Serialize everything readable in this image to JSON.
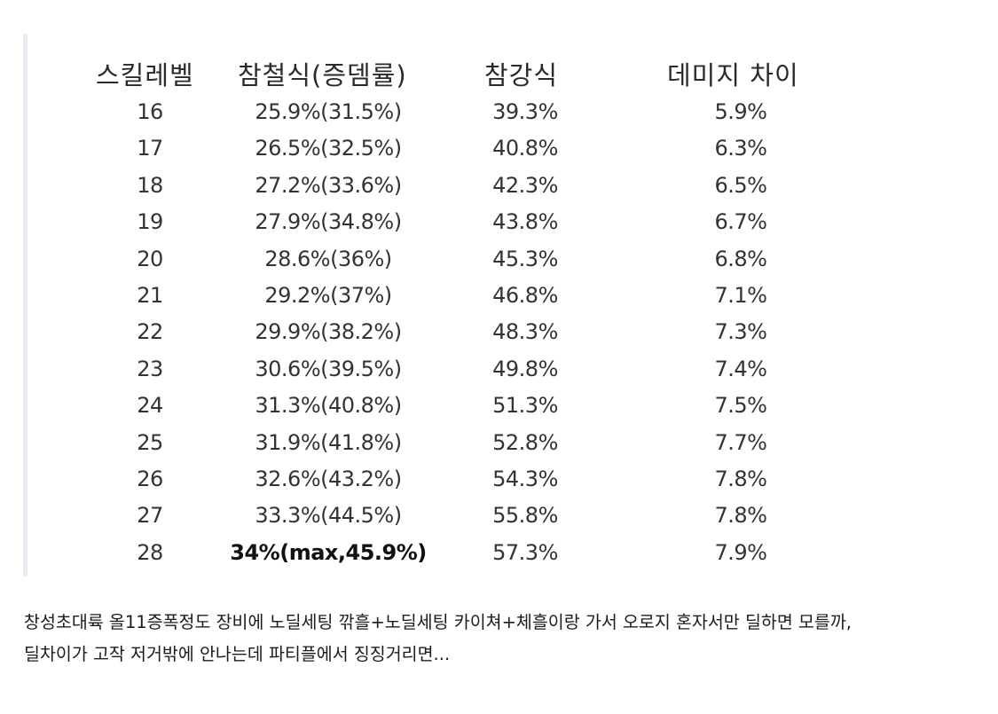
{
  "table": {
    "headers": {
      "level": "스킬레벨",
      "chamcheol": "참철식(증뎀률)",
      "chamgang": "참강식",
      "diff": "데미지  차이"
    },
    "rows": [
      {
        "level": "16",
        "chamcheol": "25.9%(31.5%)",
        "chamgang": "39.3%",
        "diff": "5.9%"
      },
      {
        "level": "17",
        "chamcheol": "26.5%(32.5%)",
        "chamgang": "40.8%",
        "diff": "6.3%"
      },
      {
        "level": "18",
        "chamcheol": "27.2%(33.6%)",
        "chamgang": "42.3%",
        "diff": "6.5%"
      },
      {
        "level": "19",
        "chamcheol": "27.9%(34.8%)",
        "chamgang": "43.8%",
        "diff": "6.7%"
      },
      {
        "level": "20",
        "chamcheol": "28.6%(36%)",
        "chamgang": "45.3%",
        "diff": "6.8%"
      },
      {
        "level": "21",
        "chamcheol": "29.2%(37%)",
        "chamgang": "46.8%",
        "diff": "7.1%"
      },
      {
        "level": "22",
        "chamcheol": "29.9%(38.2%)",
        "chamgang": "48.3%",
        "diff": "7.3%"
      },
      {
        "level": "23",
        "chamcheol": "30.6%(39.5%)",
        "chamgang": "49.8%",
        "diff": "7.4%"
      },
      {
        "level": "24",
        "chamcheol": "31.3%(40.8%)",
        "chamgang": "51.3%",
        "diff": "7.5%"
      },
      {
        "level": "25",
        "chamcheol": "31.9%(41.8%)",
        "chamgang": "52.8%",
        "diff": "7.7%"
      },
      {
        "level": "26",
        "chamcheol": "32.6%(43.2%)",
        "chamgang": "54.3%",
        "diff": "7.8%"
      },
      {
        "level": "27",
        "chamcheol": "33.3%(44.5%)",
        "chamgang": "55.8%",
        "diff": "7.8%"
      },
      {
        "level": "28",
        "chamcheol": "34%(max,45.9%)",
        "chamgang": "57.3%",
        "diff": "7.9%"
      }
    ]
  },
  "caption": {
    "line1": "창성초대륙 올11증폭정도 장비에 노딜세팅 깎흘+노딜세팅 카이쳐+체흘이랑 가서 오로지 혼자서만 딜하면 모를까,",
    "line2": "딜차이가 고작 저거밖에 안나는데 파티플에서 징징거리면..."
  }
}
